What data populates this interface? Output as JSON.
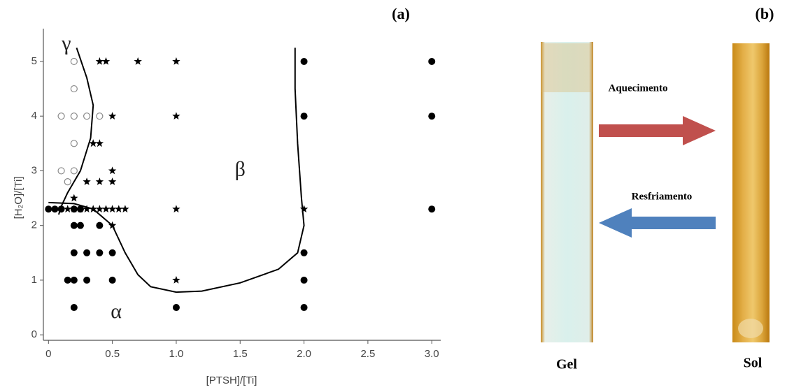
{
  "chart_data": {
    "type": "scatter",
    "panel_label": "(a)",
    "x_label": "[PTSH]/[Ti]",
    "y_label": "[H₂O]/[Ti]",
    "xlim": [
      -0.04,
      3.07
    ],
    "ylim": [
      -0.1,
      5.6
    ],
    "xticks": [
      0,
      0.5,
      {
        "value": 1,
        "label": "1.0"
      },
      1.5,
      {
        "value": 2,
        "label": "2.0"
      },
      2.5,
      {
        "value": 3,
        "label": "3.0"
      }
    ],
    "yticks": [
      0,
      1,
      2,
      3,
      4,
      5
    ],
    "annotations": [
      "γ",
      "β",
      "α"
    ],
    "series": [
      {
        "marker": "open-circle",
        "color": "#888888",
        "x": [
          0.2,
          0.2,
          0.1,
          0.2,
          0.3,
          0.4,
          0.2,
          0.1,
          0.2,
          0.15
        ],
        "y": [
          5,
          4.5,
          4,
          4,
          4,
          4,
          3.5,
          3,
          3,
          2.8
        ]
      },
      {
        "marker": "star",
        "color": "#000000",
        "x": [
          0.4,
          0.45,
          0.7,
          1,
          0.5,
          1,
          0.35,
          0.4,
          0.5,
          0.3,
          0.4,
          0.5,
          0.2,
          0.15,
          0.2,
          0.25,
          0.3,
          0.35,
          0.4,
          0.45,
          0.5,
          0.55,
          0.6,
          1,
          2,
          0.5,
          1
        ],
        "y": [
          5,
          5,
          5,
          5,
          4,
          4,
          3.5,
          3.5,
          3,
          2.8,
          2.8,
          2.8,
          2.5,
          2.3,
          2.3,
          2.3,
          2.3,
          2.3,
          2.3,
          2.3,
          2.3,
          2.3,
          2.3,
          2.3,
          2.3,
          2,
          1
        ]
      },
      {
        "marker": "filled-circle",
        "color": "#000000",
        "x": [
          0,
          0.05,
          0.1,
          0.2,
          0.25,
          0.2,
          0.25,
          0.4,
          0.2,
          0.3,
          0.4,
          0.5,
          0.15,
          0.2,
          0.3,
          0.5,
          0.2,
          1,
          2,
          2,
          2,
          2,
          2,
          3,
          3,
          3
        ],
        "y": [
          2.3,
          2.3,
          2.3,
          2.3,
          2.3,
          2,
          2,
          2,
          1.5,
          1.5,
          1.5,
          1.5,
          1,
          1,
          1,
          1,
          0.5,
          0.5,
          5,
          4,
          1.5,
          1,
          0.5,
          5,
          4,
          2.3
        ]
      }
    ],
    "curves": [
      {
        "color": "#000000",
        "x": [
          0.22,
          0.3,
          0.35,
          0.33,
          0.25,
          0.15,
          0.1,
          0.08
        ],
        "y": [
          5.25,
          4.7,
          4.2,
          3.6,
          3.0,
          2.6,
          2.35,
          2.2
        ]
      },
      {
        "color": "#000000",
        "x": [
          0,
          0.2,
          0.35,
          0.5,
          0.6,
          0.7,
          0.8,
          1.0,
          1.2,
          1.5,
          1.8,
          1.95,
          2.0,
          1.98,
          1.95,
          1.93,
          1.93
        ],
        "y": [
          2.42,
          2.4,
          2.3,
          2.0,
          1.5,
          1.1,
          0.88,
          0.78,
          0.8,
          0.95,
          1.2,
          1.5,
          2.0,
          2.5,
          3.5,
          4.5,
          5.25
        ]
      }
    ]
  },
  "photo_panel": {
    "panel_label": "(b)",
    "heating": "Aquecimento",
    "cooling": "Resfriamento",
    "left_tube": "Gel",
    "right_tube": "Sol"
  }
}
